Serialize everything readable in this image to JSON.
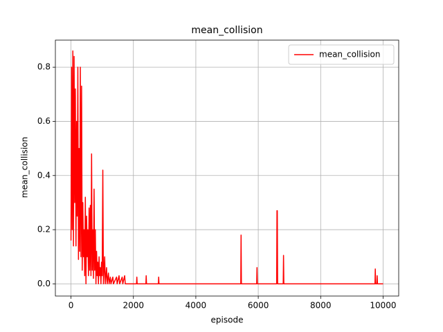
{
  "chart_data": {
    "type": "line",
    "title": "mean_collision",
    "x_label": "episode",
    "y_label": "mean_collision",
    "x": [
      0,
      20,
      40,
      60,
      80,
      100,
      120,
      140,
      160,
      180,
      200,
      220,
      240,
      260,
      280,
      300,
      320,
      340,
      360,
      380,
      400,
      420,
      440,
      460,
      480,
      500,
      520,
      540,
      560,
      580,
      600,
      620,
      640,
      660,
      680,
      700,
      720,
      740,
      760,
      780,
      800,
      820,
      840,
      860,
      880,
      900,
      920,
      940,
      960,
      980,
      1000,
      1020,
      1040,
      1060,
      1080,
      1100,
      1140,
      1160,
      1200,
      1220,
      1260,
      1280,
      1340,
      1360,
      1460,
      1480,
      1540,
      1560,
      1640,
      1660,
      1720,
      1740,
      2100,
      2110,
      2120,
      2400,
      2410,
      2420,
      2800,
      2810,
      2820,
      5440,
      5450,
      5460,
      5950,
      5960,
      5970,
      6590,
      6600,
      6610,
      6620,
      6800,
      6810,
      6820,
      9740,
      9750,
      9760,
      9800,
      9810,
      9820,
      10000
    ],
    "series": [
      {
        "name": "mean_collision",
        "color": "#ff0000",
        "values": [
          0.16,
          0.8,
          0.2,
          0.86,
          0.14,
          0.84,
          0.3,
          0.72,
          0.14,
          0.6,
          0.25,
          0.8,
          0.09,
          0.5,
          0.12,
          0.8,
          0.1,
          0.73,
          0.05,
          0.3,
          0.1,
          0.2,
          0.03,
          0.32,
          0,
          0.25,
          0.1,
          0.2,
          0.03,
          0.28,
          0.05,
          0.29,
          0.03,
          0.48,
          0.05,
          0.2,
          0.02,
          0.35,
          0.05,
          0.2,
          0,
          0.12,
          0.03,
          0.08,
          0,
          0.1,
          0.03,
          0.06,
          0,
          0.08,
          0.03,
          0.42,
          0,
          0.05,
          0.1,
          0,
          0.06,
          0,
          0.04,
          0,
          0.025,
          0,
          0.025,
          0,
          0.025,
          0,
          0.03,
          0,
          0.025,
          0,
          0.03,
          0,
          0,
          0.025,
          0,
          0,
          0.03,
          0,
          0,
          0.025,
          0,
          0,
          0.18,
          0,
          0,
          0.06,
          0,
          0,
          0.27,
          0.27,
          0,
          0,
          0.105,
          0,
          0,
          0.055,
          0,
          0,
          0.03,
          0,
          0
        ]
      }
    ],
    "xlim": [
      -500,
      10500
    ],
    "ylim": [
      -0.045,
      0.9
    ],
    "xticks": [
      0,
      2000,
      4000,
      6000,
      8000,
      10000
    ],
    "yticks": [
      {
        "value": 0,
        "label": "0.0"
      },
      0.2,
      0.4,
      0.6,
      0.8
    ],
    "grid": true,
    "legend": "upper right"
  }
}
